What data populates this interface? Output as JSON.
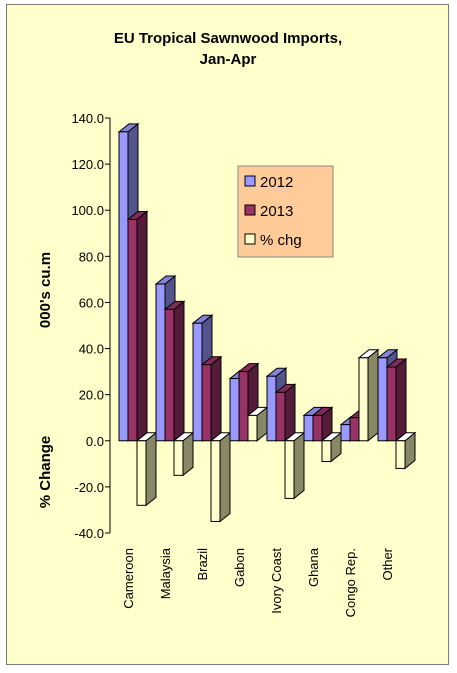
{
  "chart_data": {
    "type": "bar",
    "title_line1": "EU Tropical Sawnwood Imports,",
    "title_line2": "Jan-Apr",
    "ylabel_top": "000's cu.m",
    "ylabel_bottom": "% Change",
    "ylim": [
      -40,
      140
    ],
    "yticks": [
      "140.0",
      "120.0",
      "100.0",
      "80.0",
      "60.0",
      "40.0",
      "20.0",
      "0.0",
      "-20.0",
      "-40.0"
    ],
    "ytick_values": [
      140,
      120,
      100,
      80,
      60,
      40,
      20,
      0,
      -20,
      -40
    ],
    "categories": [
      "Cameroon",
      "Malaysia",
      "Brazil",
      "Gabon",
      "Ivory Coast",
      "Ghana",
      "Congo Rep.",
      "Other"
    ],
    "series": [
      {
        "name": "2012",
        "color": "#9999ff",
        "values": [
          134,
          68,
          51,
          27,
          28,
          11,
          7,
          36
        ]
      },
      {
        "name": "2013",
        "color": "#993366",
        "values": [
          96,
          57,
          33,
          30,
          21,
          11,
          10,
          32
        ]
      },
      {
        "name": "% chg",
        "color": "#ffffcc",
        "values": [
          -28,
          -15,
          -35,
          11,
          -25,
          -9,
          36,
          -12
        ]
      }
    ],
    "legend_position": "top-right",
    "grid": false,
    "background": "#ffffcc"
  }
}
